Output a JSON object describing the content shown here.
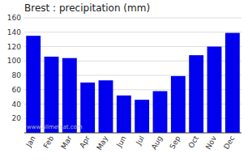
{
  "chart_data": {
    "type": "bar",
    "title": "Brest : precipitation (mm)",
    "categories": [
      "Jan",
      "Feb",
      "Mar",
      "Apr",
      "May",
      "Jun",
      "Jul",
      "Aug",
      "Sep",
      "Oct",
      "Nov",
      "Dec"
    ],
    "values": [
      135,
      106,
      104,
      70,
      73,
      52,
      46,
      58,
      79,
      108,
      120,
      139
    ],
    "color": "#0000EE",
    "ylim": [
      0,
      160
    ],
    "yticks": [
      20,
      40,
      60,
      80,
      100,
      120,
      140,
      160
    ],
    "grid": true,
    "annotation": "www.allmetsat.com"
  }
}
